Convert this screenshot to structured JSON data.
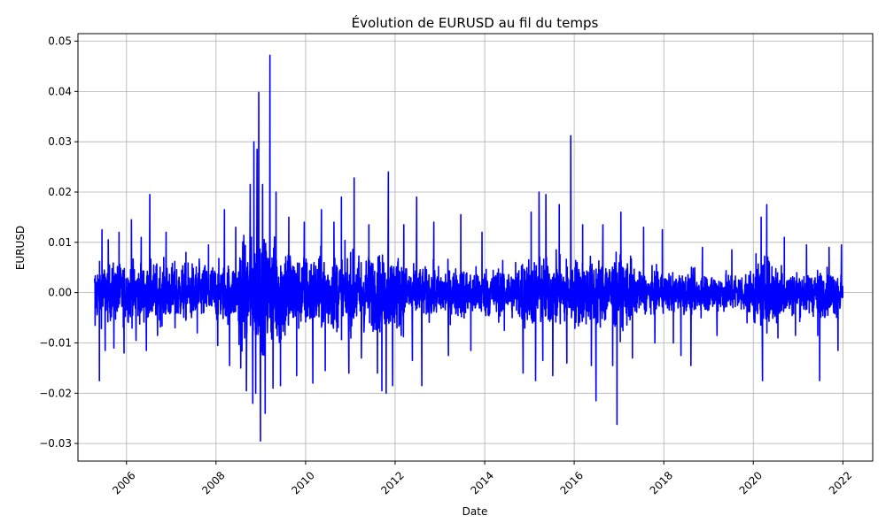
{
  "chart_data": {
    "type": "line",
    "title": "Évolution de EURUSD au fil du temps",
    "xlabel": "Date",
    "ylabel": "EURUSD",
    "x_range": [
      "2005-04-15",
      "2021-12-31"
    ],
    "xlim": [
      "2004-12-01",
      "2022-09-01"
    ],
    "ylim": [
      -0.0335,
      0.0515
    ],
    "x_ticks": [
      "2006",
      "2008",
      "2010",
      "2012",
      "2014",
      "2016",
      "2018",
      "2020",
      "2022"
    ],
    "y_ticks": [
      "−0.03",
      "−0.02",
      "−0.01",
      "0.00",
      "0.01",
      "0.02",
      "0.03",
      "0.04",
      "0.05"
    ],
    "y_tick_values": [
      -0.03,
      -0.02,
      -0.01,
      0.0,
      0.01,
      0.02,
      0.03,
      0.04,
      0.05
    ],
    "grid": true,
    "line_color": "#0000ff",
    "series": [
      {
        "points": [
          [
            "2005-04-20",
            -0.0065
          ],
          [
            "2005-05-10",
            0.0035
          ],
          [
            "2005-05-25",
            -0.0175
          ],
          [
            "2005-06-15",
            0.0125
          ],
          [
            "2005-07-10",
            -0.0115
          ],
          [
            "2005-08-05",
            0.0105
          ],
          [
            "2005-09-20",
            -0.011
          ],
          [
            "2005-11-01",
            0.012
          ],
          [
            "2005-12-10",
            -0.012
          ],
          [
            "2006-02-10",
            0.0145
          ],
          [
            "2006-03-20",
            -0.0095
          ],
          [
            "2006-05-01",
            0.011
          ],
          [
            "2006-06-10",
            -0.0115
          ],
          [
            "2006-07-10",
            0.0195
          ],
          [
            "2006-09-10",
            -0.0085
          ],
          [
            "2006-11-20",
            0.012
          ],
          [
            "2007-02-01",
            -0.007
          ],
          [
            "2007-05-01",
            0.008
          ],
          [
            "2007-08-01",
            -0.008
          ],
          [
            "2007-11-01",
            0.0095
          ],
          [
            "2008-01-15",
            -0.0105
          ],
          [
            "2008-03-10",
            0.0165
          ],
          [
            "2008-04-20",
            -0.0145
          ],
          [
            "2008-06-10",
            0.013
          ],
          [
            "2008-07-20",
            -0.015
          ],
          [
            "2008-09-05",
            -0.0195
          ],
          [
            "2008-10-05",
            0.0215
          ],
          [
            "2008-10-25",
            -0.022
          ],
          [
            "2008-11-05",
            0.03
          ],
          [
            "2008-11-20",
            -0.02
          ],
          [
            "2008-12-01",
            0.0285
          ],
          [
            "2008-12-15",
            0.0398
          ],
          [
            "2008-12-28",
            -0.0295
          ],
          [
            "2009-01-15",
            0.0215
          ],
          [
            "2009-02-05",
            -0.024
          ],
          [
            "2009-03-15",
            0.0472
          ],
          [
            "2009-04-10",
            -0.019
          ],
          [
            "2009-05-05",
            0.02
          ],
          [
            "2009-06-10",
            -0.0185
          ],
          [
            "2009-08-15",
            0.015
          ],
          [
            "2009-10-20",
            -0.0165
          ],
          [
            "2009-12-20",
            0.014
          ],
          [
            "2010-03-01",
            -0.018
          ],
          [
            "2010-05-10",
            0.0165
          ],
          [
            "2010-06-10",
            -0.0155
          ],
          [
            "2010-08-20",
            0.014
          ],
          [
            "2010-10-20",
            0.019
          ],
          [
            "2010-12-20",
            -0.016
          ],
          [
            "2011-02-01",
            0.0228
          ],
          [
            "2011-04-01",
            -0.013
          ],
          [
            "2011-06-01",
            0.0135
          ],
          [
            "2011-08-10",
            -0.016
          ],
          [
            "2011-09-15",
            -0.0195
          ],
          [
            "2011-10-20",
            -0.02
          ],
          [
            "2011-11-05",
            0.024
          ],
          [
            "2011-12-10",
            -0.0185
          ],
          [
            "2012-03-10",
            0.0135
          ],
          [
            "2012-05-20",
            -0.0135
          ],
          [
            "2012-06-25",
            0.019
          ],
          [
            "2012-08-05",
            -0.0185
          ],
          [
            "2012-11-10",
            0.014
          ],
          [
            "2013-03-10",
            -0.0125
          ],
          [
            "2013-06-20",
            0.0155
          ],
          [
            "2013-09-10",
            -0.0115
          ],
          [
            "2013-12-10",
            0.012
          ],
          [
            "2014-06-10",
            -0.0075
          ],
          [
            "2014-09-10",
            0.006
          ],
          [
            "2014-11-10",
            -0.016
          ],
          [
            "2015-01-15",
            0.016
          ],
          [
            "2015-02-20",
            -0.0175
          ],
          [
            "2015-03-20",
            0.02
          ],
          [
            "2015-04-20",
            -0.0135
          ],
          [
            "2015-05-15",
            0.0195
          ],
          [
            "2015-07-10",
            -0.0165
          ],
          [
            "2015-09-01",
            0.0175
          ],
          [
            "2015-11-01",
            -0.014
          ],
          [
            "2015-12-04",
            0.0312
          ],
          [
            "2016-03-10",
            0.0135
          ],
          [
            "2016-05-20",
            -0.0145
          ],
          [
            "2016-06-25",
            -0.0215
          ],
          [
            "2016-08-20",
            0.0135
          ],
          [
            "2016-11-10",
            -0.0145
          ],
          [
            "2016-12-15",
            -0.0262
          ],
          [
            "2017-01-15",
            0.016
          ],
          [
            "2017-04-20",
            -0.013
          ],
          [
            "2017-07-20",
            0.013
          ],
          [
            "2017-10-20",
            -0.01
          ],
          [
            "2017-12-20",
            0.0125
          ],
          [
            "2018-03-20",
            -0.01
          ],
          [
            "2018-05-20",
            -0.0125
          ],
          [
            "2018-08-10",
            -0.0145
          ],
          [
            "2018-11-10",
            0.009
          ],
          [
            "2019-03-10",
            -0.0085
          ],
          [
            "2019-07-10",
            0.0085
          ],
          [
            "2019-11-10",
            -0.006
          ],
          [
            "2020-03-05",
            0.015
          ],
          [
            "2020-03-15",
            -0.0175
          ],
          [
            "2020-04-20",
            0.0175
          ],
          [
            "2020-07-20",
            -0.009
          ],
          [
            "2020-09-10",
            0.011
          ],
          [
            "2020-12-10",
            -0.0085
          ],
          [
            "2021-03-10",
            0.0095
          ],
          [
            "2021-06-10",
            -0.0085
          ],
          [
            "2021-06-25",
            -0.0175
          ],
          [
            "2021-09-10",
            0.009
          ],
          [
            "2021-11-20",
            -0.0115
          ],
          [
            "2021-12-20",
            0.0095
          ],
          [
            "2021-12-31",
            -0.001
          ]
        ]
      }
    ]
  }
}
